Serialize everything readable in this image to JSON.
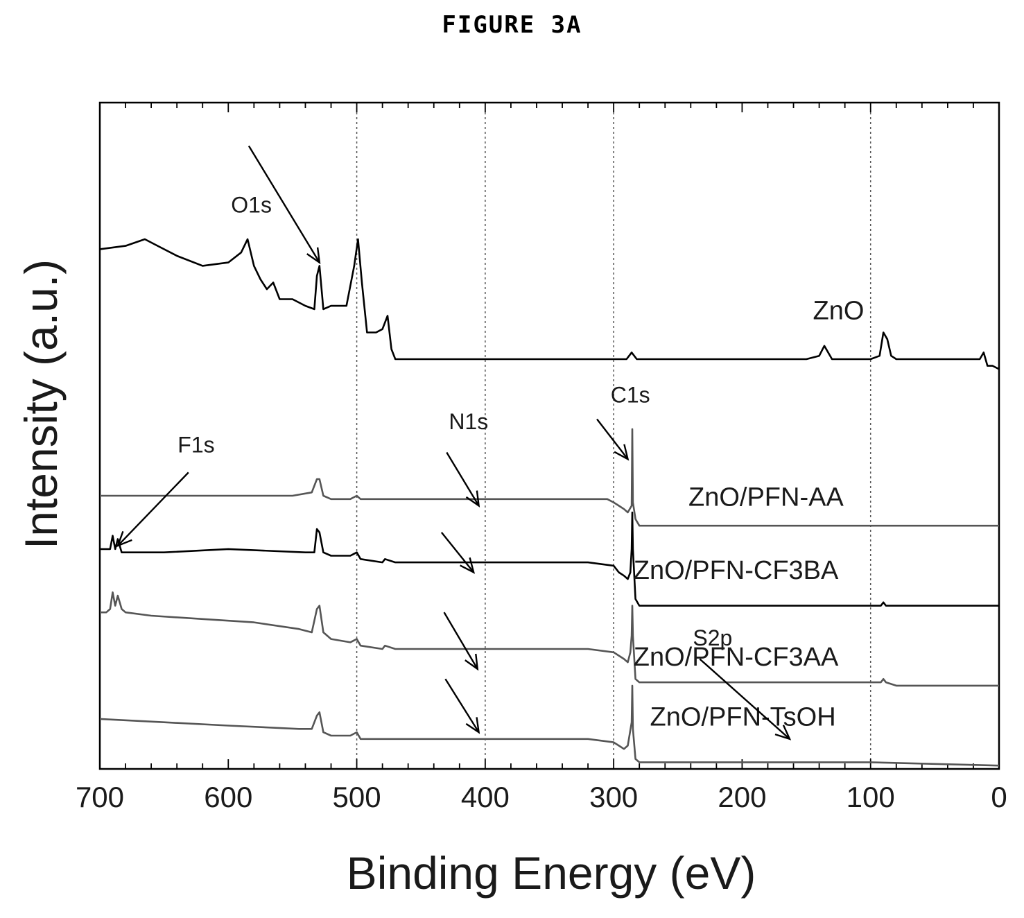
{
  "figure_label": "FIGURE 3A",
  "chart_data": {
    "type": "line",
    "title": "",
    "xlabel": "Binding Energy (eV)",
    "ylabel": "Intensity (a.u.)",
    "xlim": [
      700,
      0
    ],
    "ylim": [
      0,
      10
    ],
    "x_reversed": true,
    "x_ticks": [
      700,
      600,
      500,
      400,
      300,
      200,
      100,
      0
    ],
    "x_tick_labels": [
      "700",
      "600",
      "500",
      "400",
      "300",
      "200",
      "100",
      "0"
    ],
    "y_ticks": [],
    "grid": "vertical dotted lines at 500, 400, 300, 100",
    "guide_lines": [
      500,
      400,
      300,
      100
    ],
    "legend": "none",
    "series_color": "#000000",
    "series_gray": "#555555",
    "series": [
      {
        "name": "ZnO",
        "x": [
          700,
          680,
          665,
          655,
          640,
          620,
          600,
          590,
          585,
          580,
          575,
          570,
          565,
          560,
          550,
          540,
          533,
          531,
          529,
          526,
          520,
          513,
          508,
          502,
          499,
          496,
          492,
          485,
          480,
          476,
          473,
          470,
          460,
          420,
          380,
          300,
          290,
          286,
          282,
          250,
          200,
          160,
          150,
          140,
          136,
          130,
          115,
          100,
          93,
          90,
          87,
          84,
          80,
          60,
          40,
          20,
          15,
          12,
          9,
          5,
          0
        ],
        "y": [
          7.8,
          7.85,
          7.95,
          7.85,
          7.7,
          7.55,
          7.6,
          7.75,
          7.95,
          7.55,
          7.35,
          7.2,
          7.3,
          7.05,
          7.05,
          6.95,
          6.9,
          7.4,
          7.55,
          6.9,
          6.95,
          6.95,
          6.95,
          7.55,
          7.95,
          7.3,
          6.55,
          6.55,
          6.6,
          6.8,
          6.3,
          6.15,
          6.15,
          6.15,
          6.15,
          6.15,
          6.15,
          6.25,
          6.15,
          6.15,
          6.15,
          6.15,
          6.15,
          6.2,
          6.35,
          6.15,
          6.15,
          6.15,
          6.2,
          6.55,
          6.45,
          6.2,
          6.15,
          6.15,
          6.15,
          6.15,
          6.15,
          6.25,
          6.05,
          6.05,
          6.0
        ],
        "color_key": "series_color"
      },
      {
        "name": "ZnO/PFN-AA",
        "x": [
          700,
          600,
          550,
          535,
          531,
          529,
          526,
          520,
          505,
          500,
          497,
          490,
          450,
          400,
          320,
          305,
          300,
          296,
          292,
          289,
          286,
          285.5,
          285,
          283,
          280,
          250,
          200,
          100,
          0
        ],
        "y": [
          4.1,
          4.1,
          4.1,
          4.15,
          4.35,
          4.35,
          4.1,
          4.05,
          4.05,
          4.1,
          4.05,
          4.05,
          4.05,
          4.05,
          4.05,
          4.05,
          4.0,
          3.95,
          3.9,
          3.85,
          3.95,
          5.1,
          4.0,
          3.75,
          3.65,
          3.65,
          3.65,
          3.65,
          3.65
        ],
        "color_key": "series_gray"
      },
      {
        "name": "ZnO/PFN-CF3BA",
        "x": [
          700,
          695,
          692,
          690,
          688,
          686,
          683,
          680,
          650,
          600,
          540,
          533,
          531,
          529,
          526,
          520,
          505,
          500,
          497,
          480,
          478,
          470,
          400,
          320,
          300,
          296,
          292,
          289,
          287,
          286,
          285.5,
          285,
          283,
          280,
          250,
          200,
          100,
          92,
          90,
          88,
          0
        ],
        "y": [
          3.3,
          3.3,
          3.3,
          3.5,
          3.3,
          3.45,
          3.25,
          3.25,
          3.25,
          3.3,
          3.25,
          3.25,
          3.6,
          3.55,
          3.25,
          3.2,
          3.2,
          3.25,
          3.15,
          3.1,
          3.15,
          3.1,
          3.1,
          3.1,
          3.05,
          2.95,
          2.9,
          2.85,
          2.95,
          3.3,
          3.85,
          3.3,
          2.55,
          2.45,
          2.45,
          2.45,
          2.45,
          2.45,
          2.5,
          2.45,
          2.45
        ],
        "color_key": "series_color"
      },
      {
        "name": "ZnO/PFN-CF3AA",
        "x": [
          700,
          695,
          692,
          690,
          688,
          686,
          683,
          680,
          660,
          620,
          580,
          545,
          535,
          531,
          529,
          526,
          520,
          505,
          500,
          497,
          480,
          478,
          470,
          400,
          320,
          300,
          296,
          292,
          289,
          287,
          286,
          285.5,
          285,
          283,
          280,
          250,
          200,
          150,
          100,
          92,
          90,
          88,
          80,
          0
        ],
        "y": [
          2.35,
          2.35,
          2.4,
          2.65,
          2.45,
          2.6,
          2.4,
          2.35,
          2.3,
          2.25,
          2.2,
          2.1,
          2.05,
          2.4,
          2.45,
          2.05,
          1.95,
          1.9,
          1.95,
          1.85,
          1.8,
          1.85,
          1.8,
          1.8,
          1.8,
          1.75,
          1.7,
          1.65,
          1.6,
          1.75,
          2.0,
          2.45,
          2.0,
          1.35,
          1.3,
          1.3,
          1.3,
          1.3,
          1.3,
          1.3,
          1.35,
          1.3,
          1.25,
          1.25
        ],
        "color_key": "series_gray"
      },
      {
        "name": "ZnO/PFN-TsOH",
        "x": [
          700,
          650,
          600,
          545,
          535,
          531,
          529,
          526,
          520,
          505,
          500,
          497,
          450,
          400,
          320,
          300,
          296,
          292,
          289,
          286,
          285.5,
          285,
          283,
          280,
          250,
          200,
          100,
          0
        ],
        "y": [
          0.75,
          0.7,
          0.65,
          0.6,
          0.6,
          0.8,
          0.85,
          0.55,
          0.5,
          0.5,
          0.55,
          0.45,
          0.45,
          0.45,
          0.45,
          0.4,
          0.35,
          0.3,
          0.35,
          0.7,
          1.25,
          0.6,
          0.15,
          0.1,
          0.1,
          0.1,
          0.1,
          0.05
        ],
        "color_key": "series_gray"
      }
    ],
    "series_labels": [
      {
        "text": "ZnO",
        "x": 105,
        "y": 6.75
      },
      {
        "text": "ZnO/PFN-AA",
        "x": 121,
        "y": 3.95
      },
      {
        "text": "ZnO/PFN-CF3BA",
        "x": 125,
        "y": 2.85
      },
      {
        "text": "ZnO/PFN-CF3AA",
        "x": 125,
        "y": 1.55
      },
      {
        "text": "ZnO/PFN-TsOH",
        "x": 127,
        "y": 0.65
      }
    ],
    "annotations": [
      {
        "text": "O1s",
        "label_x": 582,
        "label_y": 8.35,
        "arrow": {
          "from": [
            584,
            9.35
          ],
          "to": [
            529,
            7.6
          ]
        }
      },
      {
        "text": "C1s",
        "label_x": 287,
        "label_y": 5.5,
        "arrow": {
          "from": [
            313,
            5.25
          ],
          "to": [
            289,
            4.65
          ]
        }
      },
      {
        "text": "N1s",
        "label_x": 413,
        "label_y": 5.1,
        "arrow": {
          "from": [
            430,
            4.75
          ],
          "to": [
            405,
            3.95
          ]
        }
      },
      {
        "text": "F1s",
        "label_x": 625,
        "label_y": 4.75,
        "arrow": {
          "from": [
            631,
            4.45
          ],
          "to": [
            686,
            3.35
          ]
        }
      },
      {
        "text": "S2p",
        "label_x": 223,
        "label_y": 1.85,
        "arrow": {
          "from": [
            233,
            1.65
          ],
          "to": [
            163,
            0.45
          ]
        }
      }
    ],
    "extra_arrows": [
      {
        "from": [
          434,
          3.55
        ],
        "to": [
          409,
          2.95
        ]
      },
      {
        "from": [
          432,
          2.35
        ],
        "to": [
          406,
          1.5
        ]
      },
      {
        "from": [
          431,
          1.35
        ],
        "to": [
          405,
          0.55
        ]
      }
    ]
  }
}
